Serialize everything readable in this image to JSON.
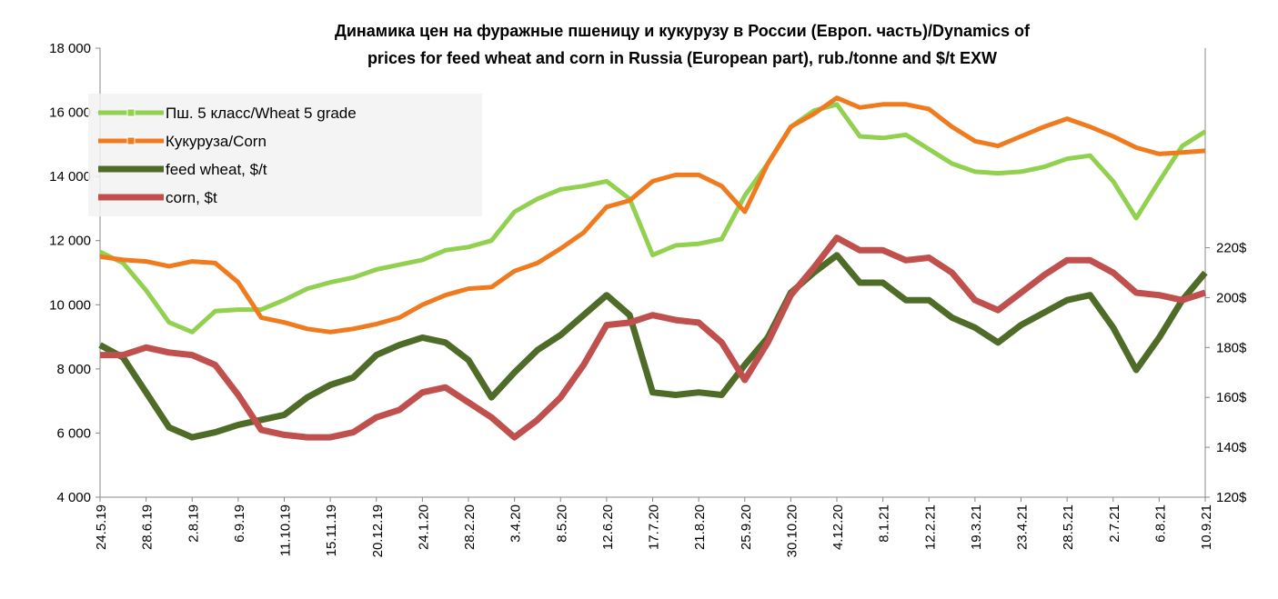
{
  "chart_data": {
    "type": "line",
    "title": [
      "Динамика цен на фуражные пшеницу и кукурузу в России (Европ. часть)/Dynamics of",
      "prices for feed wheat and corn in Russia (European part), rub./tonne and $/t EXW"
    ],
    "categories": [
      "24.5.19",
      null,
      "28.6.19",
      null,
      "2.8.19",
      null,
      "6.9.19",
      null,
      "11.10.19",
      null,
      "15.11.19",
      null,
      "20.12.19",
      null,
      "24.1.20",
      null,
      "28.2.20",
      null,
      "3.4.20",
      null,
      "8.5.20",
      null,
      "12.6.20",
      null,
      "17.7.20",
      null,
      "21.8.20",
      null,
      "25.9.20",
      null,
      "30.10.20",
      null,
      "4.12.20",
      null,
      "8.1.21",
      null,
      "12.2.21",
      null,
      "19.3.21",
      null,
      "23.4.21",
      null,
      "28.5.21",
      null,
      "2.7.21",
      null,
      "6.8.21",
      null,
      "10.9.21"
    ],
    "series": [
      {
        "name": "Пш. 5 класс/Wheat 5 grade",
        "color": "#92d050",
        "marker": true,
        "values": [
          11650,
          11300,
          10450,
          9450,
          9150,
          9800,
          9850,
          9850,
          10150,
          10500,
          10700,
          10850,
          11100,
          11250,
          11400,
          11700,
          11800,
          12000,
          12900,
          13300,
          13600,
          13700,
          13850,
          13300,
          11550,
          11850,
          11900,
          12050,
          13400,
          14400,
          15550,
          16050,
          16250,
          15250,
          15200,
          15300,
          14850,
          14400,
          14150,
          14100,
          14150,
          14300,
          14550,
          14650,
          13850,
          12700,
          13850,
          14950,
          15400
        ]
      },
      {
        "name": "Кукуруза/Corn",
        "color": "#f07b1e",
        "marker": true,
        "values": [
          11500,
          11400,
          11350,
          11200,
          11350,
          11300,
          10700,
          9600,
          9450,
          9250,
          9150,
          9250,
          9400,
          9600,
          10000,
          10300,
          10500,
          10550,
          11050,
          11300,
          11750,
          12250,
          13050,
          13250,
          13850,
          14050,
          14050,
          13700,
          12900,
          14400,
          15550,
          15950,
          16450,
          16150,
          16250,
          16250,
          16100,
          15550,
          15100,
          14950,
          15250,
          15550,
          15800,
          15550,
          15250,
          14900,
          14700,
          14750,
          14800
        ]
      },
      {
        "name": "feed wheat, $/t",
        "color": "#4f6b28",
        "axis": "y2",
        "values": [
          181,
          176,
          162,
          148,
          144,
          146,
          149,
          151,
          153,
          160,
          165,
          168,
          177,
          181,
          184,
          182,
          175,
          160,
          170,
          179,
          185,
          193,
          201,
          193,
          162,
          161,
          162,
          161,
          173,
          184,
          202,
          210,
          217,
          206,
          206,
          199,
          199,
          192,
          188,
          182,
          189,
          194,
          199,
          201,
          188,
          171,
          184,
          199,
          210
        ]
      },
      {
        "name": "corn, $t",
        "color": "#c0504d",
        "axis": "y2",
        "values": [
          177,
          177,
          180,
          178,
          177,
          173,
          161,
          147,
          145,
          144,
          144,
          146,
          152,
          155,
          162,
          164,
          158,
          152,
          144,
          151,
          160,
          173,
          189,
          190,
          193,
          191,
          190,
          182,
          167,
          182,
          201,
          212,
          224,
          219,
          219,
          215,
          216,
          210,
          199,
          195,
          202,
          209,
          215,
          215,
          210,
          202,
          201,
          199,
          202
        ]
      }
    ],
    "ylim": [
      4000,
      18000
    ],
    "yticks": [
      {
        "value": 4000,
        "label": "4 000"
      },
      {
        "value": 6000,
        "label": "6 000"
      },
      {
        "value": 8000,
        "label": "8 000"
      },
      {
        "value": 10000,
        "label": "10 000"
      },
      {
        "value": 12000,
        "label": "12 000"
      },
      {
        "value": 14000,
        "label": "14 000"
      },
      {
        "value": 16000,
        "label": "16 000"
      },
      {
        "value": 18000,
        "label": "18 000"
      }
    ],
    "y2lim": [
      120,
      300
    ],
    "y2ticks": [
      {
        "value": 120,
        "label": "120$"
      },
      {
        "value": 140,
        "label": "140$"
      },
      {
        "value": 160,
        "label": "160$"
      },
      {
        "value": 180,
        "label": "180$"
      },
      {
        "value": 200,
        "label": "200$"
      },
      {
        "value": 220,
        "label": "220$"
      }
    ],
    "grid": false,
    "legend": "upper left"
  }
}
